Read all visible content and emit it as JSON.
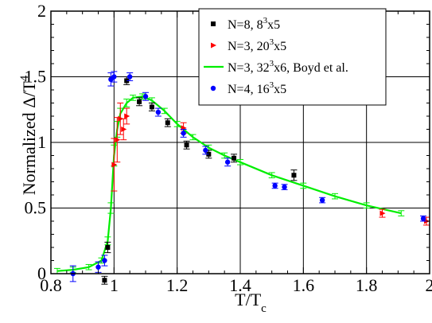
{
  "chart_data": {
    "type": "scatter",
    "xlim": [
      0.8,
      2.0
    ],
    "ylim": [
      0,
      2.0
    ],
    "xticks": [
      0.8,
      1.0,
      1.2,
      1.4,
      1.6,
      1.8,
      2.0
    ],
    "yticks": [
      0,
      0.5,
      1.0,
      1.5,
      2.0
    ],
    "xtick_labels": [
      "0.8",
      "1",
      "1.2",
      "1.4",
      "1.6",
      "1.8",
      "2"
    ],
    "ytick_labels": [
      "0",
      "0.5",
      "1",
      "1.5",
      "2"
    ],
    "xlabel": {
      "main": "T/T",
      "sub": "c"
    },
    "ylabel": {
      "main": "Normalized Δ/T",
      "sup": "4"
    },
    "grid": true,
    "legend_position": "top-right",
    "series": [
      {
        "legend": {
          "base": "N=8, 8",
          "sup": "3",
          "tail": "x5"
        },
        "marker": "square",
        "color": "#000000",
        "points": [
          {
            "x": 0.97,
            "y": -0.05,
            "err": 0.03
          },
          {
            "x": 0.98,
            "y": 0.2,
            "err": 0.04
          },
          {
            "x": 1.04,
            "y": 1.47,
            "err": 0.03
          },
          {
            "x": 1.08,
            "y": 1.31,
            "err": 0.03
          },
          {
            "x": 1.12,
            "y": 1.27,
            "err": 0.03
          },
          {
            "x": 1.17,
            "y": 1.15,
            "err": 0.03
          },
          {
            "x": 1.23,
            "y": 0.98,
            "err": 0.03
          },
          {
            "x": 1.3,
            "y": 0.91,
            "err": 0.03
          },
          {
            "x": 1.38,
            "y": 0.88,
            "err": 0.03
          },
          {
            "x": 1.57,
            "y": 0.75,
            "err": 0.04
          }
        ]
      },
      {
        "legend": {
          "base": "N=3, 20",
          "sup": "3",
          "tail": "x5"
        },
        "marker": "triangle",
        "color": "#ff0000",
        "points": [
          {
            "x": 1.0,
            "y": 0.83,
            "err": 0.2
          },
          {
            "x": 1.01,
            "y": 1.02,
            "err": 0.17
          },
          {
            "x": 1.02,
            "y": 1.18,
            "err": 0.12
          },
          {
            "x": 1.03,
            "y": 1.1,
            "err": 0.08
          },
          {
            "x": 1.04,
            "y": 1.2,
            "err": 0.06
          },
          {
            "x": 1.22,
            "y": 1.11,
            "err": 0.04
          },
          {
            "x": 1.85,
            "y": 0.46,
            "err": 0.03
          },
          {
            "x": 1.99,
            "y": 0.4,
            "err": 0.03
          }
        ]
      },
      {
        "legend": {
          "base": "N=4, 16",
          "sup": "3",
          "tail": "x5"
        },
        "marker": "circle",
        "color": "#0000ff",
        "points": [
          {
            "x": 0.87,
            "y": 0.0,
            "err": 0.06
          },
          {
            "x": 0.95,
            "y": 0.05,
            "err": 0.04
          },
          {
            "x": 0.97,
            "y": 0.1,
            "err": 0.04
          },
          {
            "x": 0.99,
            "y": 1.48,
            "err": 0.05
          },
          {
            "x": 1.0,
            "y": 1.5,
            "err": 0.04
          },
          {
            "x": 1.05,
            "y": 1.5,
            "err": 0.03
          },
          {
            "x": 1.1,
            "y": 1.35,
            "err": 0.03
          },
          {
            "x": 1.14,
            "y": 1.23,
            "err": 0.03
          },
          {
            "x": 1.22,
            "y": 1.07,
            "err": 0.03
          },
          {
            "x": 1.29,
            "y": 0.94,
            "err": 0.03
          },
          {
            "x": 1.36,
            "y": 0.85,
            "err": 0.03
          },
          {
            "x": 1.51,
            "y": 0.67,
            "err": 0.02
          },
          {
            "x": 1.54,
            "y": 0.66,
            "err": 0.02
          },
          {
            "x": 1.66,
            "y": 0.56,
            "err": 0.02
          },
          {
            "x": 1.98,
            "y": 0.42,
            "err": 0.02
          }
        ]
      },
      {
        "legend": {
          "base": "N=3, 32",
          "sup": "3",
          "tail": "x6, Boyd et al."
        },
        "marker": "line",
        "color": "#00ee00",
        "points": [
          {
            "x": 0.82,
            "y": 0.02,
            "err": 0.02
          },
          {
            "x": 0.87,
            "y": 0.03,
            "err": 0.02
          },
          {
            "x": 0.92,
            "y": 0.05,
            "err": 0.02
          },
          {
            "x": 0.96,
            "y": 0.1,
            "err": 0.02
          },
          {
            "x": 0.98,
            "y": 0.25,
            "err": 0.03
          },
          {
            "x": 0.99,
            "y": 0.5,
            "err": 0.04
          },
          {
            "x": 1.0,
            "y": 0.9,
            "err": 0.08
          },
          {
            "x": 1.01,
            "y": 1.1,
            "err": 0.06
          },
          {
            "x": 1.02,
            "y": 1.22,
            "err": 0.04
          },
          {
            "x": 1.04,
            "y": 1.3,
            "err": 0.03
          },
          {
            "x": 1.06,
            "y": 1.34,
            "err": 0.02
          },
          {
            "x": 1.09,
            "y": 1.35,
            "err": 0.02
          },
          {
            "x": 1.12,
            "y": 1.32,
            "err": 0.02
          },
          {
            "x": 1.16,
            "y": 1.24,
            "err": 0.02
          },
          {
            "x": 1.2,
            "y": 1.14,
            "err": 0.02
          },
          {
            "x": 1.25,
            "y": 1.04,
            "err": 0.02
          },
          {
            "x": 1.3,
            "y": 0.96,
            "err": 0.02
          },
          {
            "x": 1.35,
            "y": 0.9,
            "err": 0.02
          },
          {
            "x": 1.4,
            "y": 0.85,
            "err": 0.02
          },
          {
            "x": 1.5,
            "y": 0.75,
            "err": 0.02
          },
          {
            "x": 1.6,
            "y": 0.67,
            "err": 0.02
          },
          {
            "x": 1.7,
            "y": 0.59,
            "err": 0.02
          },
          {
            "x": 1.8,
            "y": 0.52,
            "err": 0.02
          },
          {
            "x": 1.91,
            "y": 0.46,
            "err": 0.02
          }
        ]
      }
    ]
  }
}
